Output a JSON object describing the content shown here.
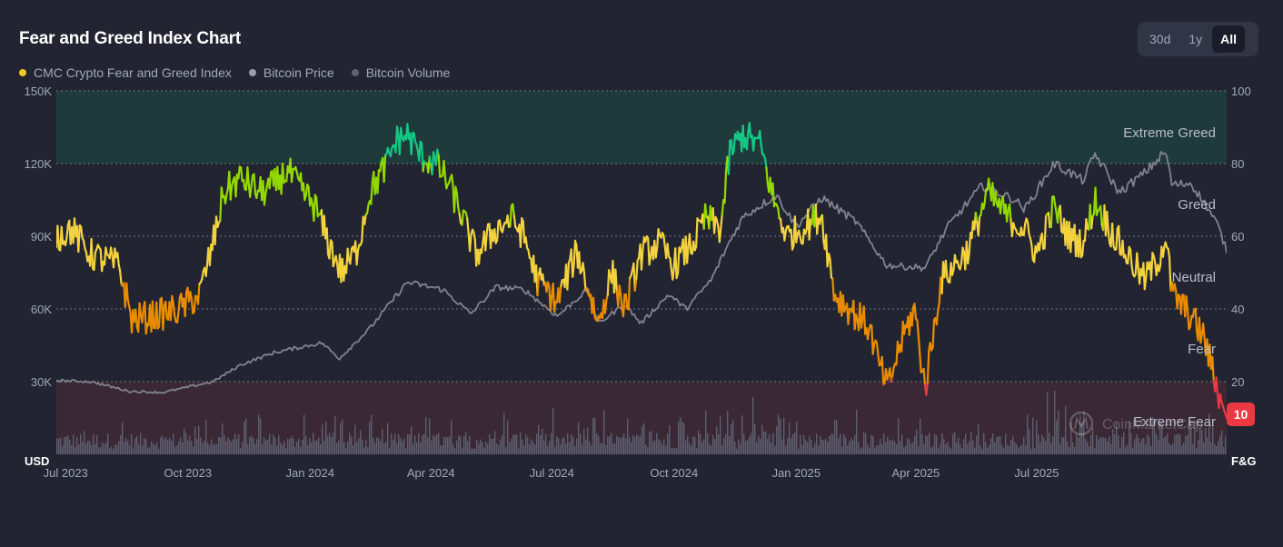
{
  "header": {
    "title": "Fear and Greed Index Chart",
    "ranges": [
      {
        "label": "30d",
        "active": false
      },
      {
        "label": "1y",
        "active": false
      },
      {
        "label": "All",
        "active": true
      }
    ]
  },
  "legend": [
    {
      "label": "CMC Crypto Fear and Greed Index",
      "color": "#f0c929"
    },
    {
      "label": "Bitcoin Price",
      "color": "#9a9dac"
    },
    {
      "label": "Bitcoin Volume",
      "color": "#5f6273"
    }
  ],
  "watermark": "CoinMarketCap",
  "current_value": "10",
  "chart_data": {
    "type": "line",
    "title": "Fear and Greed Index Chart",
    "x_tick_labels": [
      "Jul 2023",
      "Oct 2023",
      "Jan 2024",
      "Apr 2024",
      "Jul 2024",
      "Oct 2024",
      "Jan 2025",
      "Apr 2025",
      "Jul 2025"
    ],
    "x_range": [
      "2023-06-24",
      "2025-11-21"
    ],
    "left_axis": {
      "label": "USD",
      "ticks": [
        "150K",
        "120K",
        "90K",
        "60K",
        "30K"
      ],
      "ylim": [
        0,
        150000
      ]
    },
    "right_axis": {
      "label": "F&G",
      "ticks": [
        "100",
        "80",
        "60",
        "40",
        "20"
      ],
      "ylim": [
        0,
        100
      ]
    },
    "zones": [
      {
        "label": "Extreme Greed",
        "from": 80,
        "to": 100,
        "color": "#1f3a3a"
      },
      {
        "label": "Greed",
        "from": 60,
        "to": 80
      },
      {
        "label": "Neutral",
        "from": 40,
        "to": 60
      },
      {
        "label": "Fear",
        "from": 20,
        "to": 40
      },
      {
        "label": "Extreme Fear",
        "from": 0,
        "to": 20,
        "color": "#3a2935"
      }
    ],
    "grid": true,
    "series": [
      {
        "name": "CMC Crypto Fear and Greed Index",
        "axis": "right",
        "x": [
          "2023-06-24",
          "2023-07-05",
          "2023-07-20",
          "2023-08-10",
          "2023-08-20",
          "2023-09-05",
          "2023-09-25",
          "2023-10-10",
          "2023-10-20",
          "2023-10-28",
          "2023-11-10",
          "2023-11-25",
          "2023-12-05",
          "2023-12-15",
          "2023-12-25",
          "2024-01-05",
          "2024-01-15",
          "2024-01-25",
          "2024-02-05",
          "2024-02-15",
          "2024-02-28",
          "2024-03-05",
          "2024-03-14",
          "2024-03-25",
          "2024-04-05",
          "2024-04-15",
          "2024-04-25",
          "2024-05-05",
          "2024-05-20",
          "2024-06-01",
          "2024-06-10",
          "2024-06-20",
          "2024-07-05",
          "2024-07-20",
          "2024-08-05",
          "2024-08-15",
          "2024-08-25",
          "2024-09-06",
          "2024-09-20",
          "2024-10-01",
          "2024-10-15",
          "2024-10-25",
          "2024-11-05",
          "2024-11-12",
          "2024-11-22",
          "2024-12-05",
          "2024-12-15",
          "2024-12-25",
          "2025-01-05",
          "2025-01-20",
          "2025-01-30",
          "2025-02-10",
          "2025-02-25",
          "2025-03-05",
          "2025-03-11",
          "2025-03-20",
          "2025-03-31",
          "2025-04-08",
          "2025-04-20",
          "2025-05-10",
          "2025-05-25",
          "2025-06-10",
          "2025-06-22",
          "2025-07-01",
          "2025-07-14",
          "2025-07-25",
          "2025-08-05",
          "2025-08-14",
          "2025-08-25",
          "2025-09-05",
          "2025-09-20",
          "2025-10-01",
          "2025-10-06",
          "2025-10-11",
          "2025-10-25",
          "2025-11-04",
          "2025-11-14",
          "2025-11-21"
        ],
        "y": [
          60,
          62,
          55,
          52,
          37,
          38,
          40,
          44,
          58,
          72,
          76,
          72,
          74,
          78,
          73,
          68,
          58,
          50,
          56,
          72,
          80,
          86,
          88,
          82,
          80,
          74,
          65,
          55,
          62,
          65,
          60,
          48,
          42,
          56,
          36,
          50,
          40,
          55,
          58,
          52,
          58,
          65,
          62,
          83,
          88,
          85,
          70,
          60,
          62,
          66,
          44,
          40,
          35,
          24,
          18,
          30,
          40,
          18,
          48,
          56,
          72,
          65,
          62,
          55,
          68,
          60,
          58,
          70,
          62,
          56,
          48,
          54,
          60,
          44,
          38,
          32,
          18,
          10
        ]
      },
      {
        "name": "Bitcoin Price",
        "axis": "left",
        "x": [
          "2023-06-24",
          "2023-07-20",
          "2023-08-18",
          "2023-09-12",
          "2023-10-20",
          "2023-11-10",
          "2023-12-05",
          "2024-01-10",
          "2024-01-23",
          "2024-02-15",
          "2024-03-14",
          "2024-04-10",
          "2024-05-01",
          "2024-05-20",
          "2024-06-10",
          "2024-07-05",
          "2024-07-28",
          "2024-08-05",
          "2024-08-25",
          "2024-09-06",
          "2024-09-27",
          "2024-10-10",
          "2024-10-29",
          "2024-11-12",
          "2024-11-22",
          "2024-12-17",
          "2025-01-01",
          "2025-01-20",
          "2025-02-15",
          "2025-03-10",
          "2025-04-08",
          "2025-04-25",
          "2025-05-21",
          "2025-06-15",
          "2025-06-22",
          "2025-07-14",
          "2025-08-05",
          "2025-08-14",
          "2025-09-01",
          "2025-09-20",
          "2025-10-06",
          "2025-10-11",
          "2025-10-25",
          "2025-11-04",
          "2025-11-14",
          "2025-11-21"
        ],
        "y": [
          30500,
          30000,
          26000,
          25500,
          30000,
          37000,
          42000,
          46000,
          39500,
          52000,
          71000,
          68000,
          58000,
          69000,
          68000,
          57000,
          68000,
          54000,
          62000,
          54000,
          66000,
          60000,
          72000,
          88000,
          98000,
          107000,
          94000,
          106000,
          96000,
          78000,
          77000,
          94000,
          111000,
          105000,
          101000,
          120000,
          113000,
          124000,
          108000,
          116000,
          125000,
          111000,
          112000,
          104000,
          95000,
          84000
        ]
      }
    ],
    "bar_series": {
      "name": "Bitcoin Volume",
      "note": "unscaled bars along the bottom of the plot"
    }
  }
}
